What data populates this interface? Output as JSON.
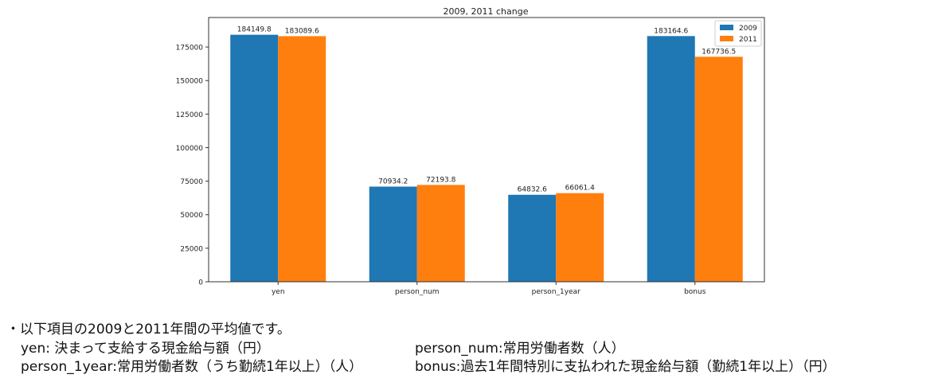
{
  "chart_data": {
    "type": "bar",
    "title": "2009, 2011 change",
    "xlabel": "",
    "ylabel": "",
    "categories": [
      "yen",
      "person_num",
      "person_1year",
      "bonus"
    ],
    "series": [
      {
        "name": "2009",
        "color": "#1f77b4",
        "values": [
          184149.8,
          70934.2,
          64832.6,
          183164.6
        ],
        "labels": [
          "184149.8",
          "70934.2",
          "64832.6",
          "183164.6"
        ]
      },
      {
        "name": "2011",
        "color": "#ff7f0e",
        "values": [
          183089.6,
          72193.8,
          66061.4,
          167736.5
        ],
        "labels": [
          "183089.6",
          "72193.8",
          "66061.4",
          "167736.5"
        ]
      }
    ],
    "ylim": [
      0,
      197000
    ],
    "yticks": [
      0,
      25000,
      50000,
      75000,
      100000,
      125000,
      150000,
      175000
    ],
    "ytick_labels": [
      "0",
      "25000",
      "50000",
      "75000",
      "100000",
      "125000",
      "150000",
      "175000"
    ],
    "grid": false,
    "legend_position": "top-right"
  },
  "captions": {
    "intro": "・以下項目の2009と2011年間の平均値です。",
    "yen": "yen: 決まって支給する現金給与額（円）",
    "person_num": "person_num:常用労働者数（人）",
    "person_1year": "person_1year:常用労働者数（うち勤続1年以上）（人）",
    "bonus": "bonus:過去1年間特別に支払われた現金給与額（勤続1年以上）（円）"
  }
}
